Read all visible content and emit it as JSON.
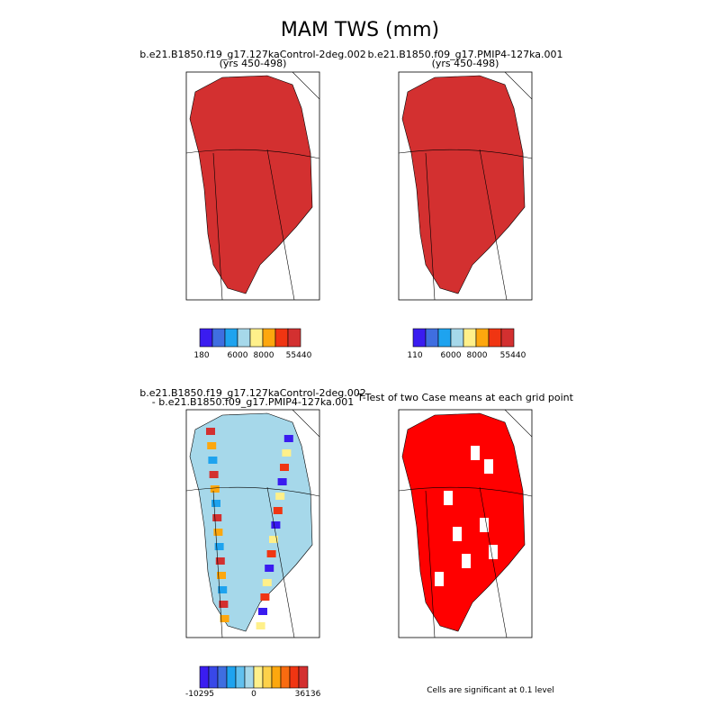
{
  "title": "MAM TWS (mm)",
  "panels": [
    {
      "title": "b.e21.B1850.f19_g17.127kaControl-2deg.002",
      "subtitle": "(yrs 450-498)",
      "colorbar": {
        "colors": [
          "#3a1cf0",
          "#3f6ee0",
          "#1ea3ef",
          "#a6d8ea",
          "#fff08a",
          "#fda70e",
          "#f03512",
          "#d33030"
        ],
        "labels": [
          "180",
          "6000",
          "8000",
          "55440"
        ]
      }
    },
    {
      "title": "b.e21.B1850.f09_g17.PMIP4-127ka.001",
      "subtitle": "(yrs 450-498)",
      "colorbar": {
        "colors": [
          "#3a1cf0",
          "#3f6ee0",
          "#1ea3ef",
          "#a6d8ea",
          "#fff08a",
          "#fda70e",
          "#f03512",
          "#d33030"
        ],
        "labels": [
          "110",
          "6000",
          "8000",
          "55440"
        ]
      }
    },
    {
      "title": "b.e21.B1850.f19_g17.127kaControl-2deg.002",
      "subtitle": "- b.e21.B1850.f09_g17.PMIP4-127ka.001",
      "colorbar": {
        "colors": [
          "#3a1cf0",
          "#3848e8",
          "#3f6ee0",
          "#1ea3ef",
          "#62c0ee",
          "#a6d8ea",
          "#fff08a",
          "#fdd14a",
          "#fda70e",
          "#f86b10",
          "#f03512",
          "#d33030"
        ],
        "labels": [
          "-10295",
          "0",
          "36136"
        ]
      }
    },
    {
      "title": "T-Test of two Case means at each grid point",
      "note": "Cells are significant at 0.1 level"
    }
  ]
}
